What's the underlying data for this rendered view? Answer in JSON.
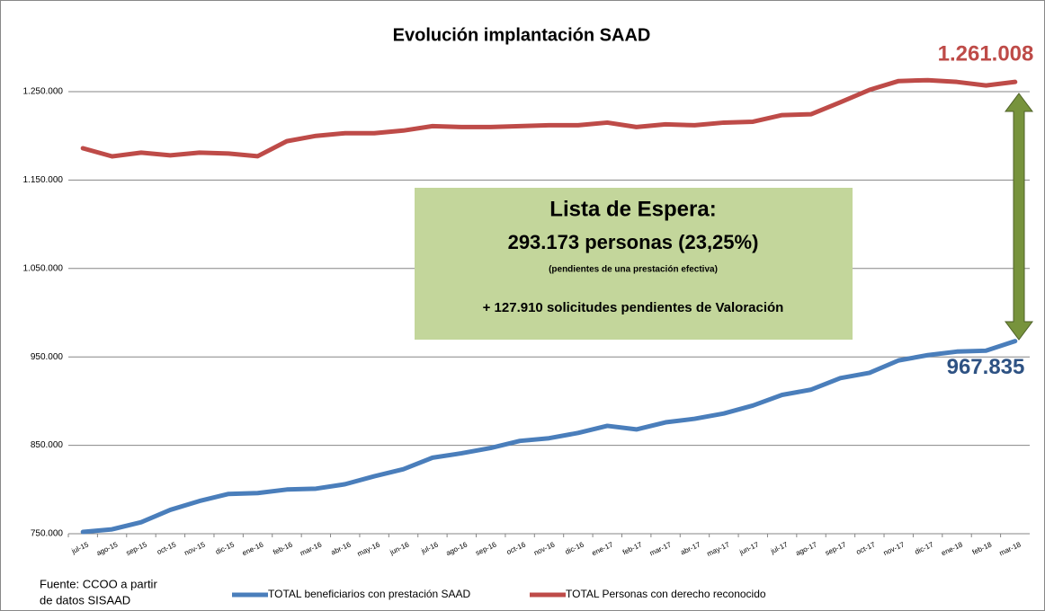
{
  "chart_data": {
    "type": "line",
    "title": "Evolución implantación SAAD",
    "categories": [
      "jul-15",
      "ago-15",
      "sep-15",
      "oct-15",
      "nov-15",
      "dic-15",
      "ene-16",
      "feb-16",
      "mar-16",
      "abr-16",
      "may-16",
      "jun-16",
      "jul-16",
      "ago-16",
      "sep-16",
      "oct-16",
      "nov-16",
      "dic-16",
      "ene-17",
      "feb-17",
      "mar-17",
      "abr-17",
      "may-17",
      "jun-17",
      "jul-17",
      "ago-17",
      "sep-17",
      "oct-17",
      "nov-17",
      "dic-17",
      "ene-18",
      "feb-18",
      "mar-18"
    ],
    "series": [
      {
        "name": "TOTAL  beneficiarios con prestación SAAD",
        "color": "#4a7ebb",
        "values": [
          752000,
          755000,
          763000,
          777000,
          787000,
          795000,
          796000,
          800000,
          801000,
          806000,
          815000,
          823000,
          836000,
          841000,
          847000,
          855000,
          858000,
          864000,
          872000,
          868000,
          876000,
          880000,
          886000,
          895000,
          907000,
          913000,
          926000,
          932000,
          946000,
          952000,
          956000,
          957000,
          967835
        ],
        "value_labels": [
          null,
          null,
          null,
          null,
          null,
          null,
          null,
          null,
          null,
          null,
          null,
          null,
          null,
          null,
          null,
          null,
          null,
          null,
          null,
          null,
          null,
          null,
          null,
          null,
          null,
          null,
          null,
          null,
          null,
          null,
          null,
          null,
          "967.835"
        ],
        "label_color": "#2e5283"
      },
      {
        "name": "TOTAL Personas con derecho reconocido",
        "color": "#be4b48",
        "values": [
          1186000,
          1176800,
          1181000,
          1178000,
          1181000,
          1180000,
          1177000,
          1194000,
          1200000,
          1203000,
          1203000,
          1206000,
          1211000,
          1210000,
          1210000,
          1211000,
          1212000,
          1212000,
          1215000,
          1210000,
          1213000,
          1212000,
          1215000,
          1216000,
          1223500,
          1224500,
          1238000,
          1252000,
          1262000,
          1263000,
          1261000,
          1257000,
          1261008
        ],
        "value_labels": [
          null,
          null,
          null,
          null,
          null,
          null,
          null,
          null,
          null,
          null,
          null,
          null,
          null,
          null,
          null,
          null,
          null,
          null,
          null,
          null,
          null,
          null,
          null,
          null,
          null,
          null,
          null,
          null,
          null,
          null,
          null,
          null,
          "1.261.008"
        ],
        "label_color": "#be4b48"
      }
    ],
    "ylim": [
      750000,
      1250000
    ],
    "yticks": [
      {
        "value": 750000,
        "label": "750.000"
      },
      {
        "value": 850000,
        "label": "850.000"
      },
      {
        "value": 950000,
        "label": "950.000"
      },
      {
        "value": 1050000,
        "label": "1.050.000"
      },
      {
        "value": 1150000,
        "label": "1.150.000"
      },
      {
        "value": 1250000,
        "label": "1.250.000"
      }
    ],
    "grid": true,
    "legend": "bottom",
    "annotation": {
      "lines": [
        "Lista de Espera:",
        "293.173 personas (23,25%)",
        "(pendientes de una prestación efectiva)",
        "+ 127.910 solicitudes pendientes de Valoración"
      ],
      "color": "#c3d69b"
    },
    "arrow_color": "#77933c",
    "source": [
      "Fuente: CCOO a partir",
      "de datos SISAAD"
    ]
  }
}
